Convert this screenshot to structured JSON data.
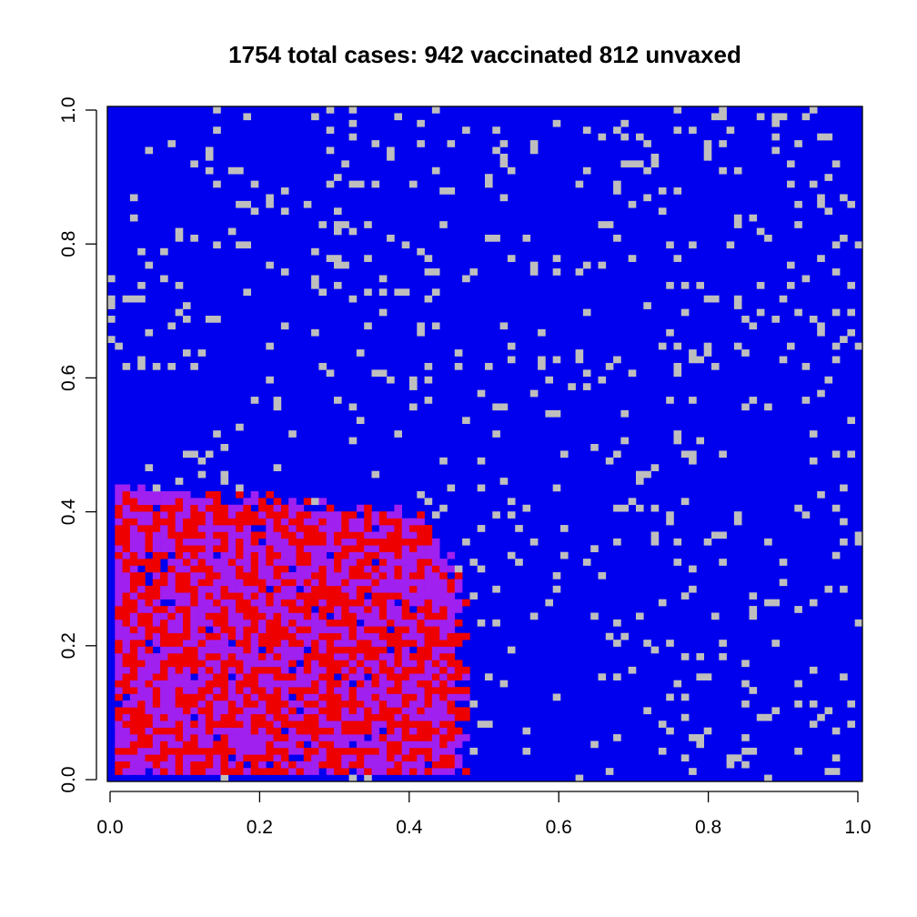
{
  "chart_data": {
    "type": "heatmap",
    "title": "1754 total cases: 942 vaccinated 812 unvaxed",
    "xlabel": "",
    "ylabel": "",
    "xlim": [
      0,
      1
    ],
    "ylim": [
      0,
      1
    ],
    "x_ticks": [
      "0.0",
      "0.2",
      "0.4",
      "0.6",
      "0.8",
      "1.0"
    ],
    "y_ticks": [
      "0.0",
      "0.2",
      "0.4",
      "0.6",
      "0.8",
      "1.0"
    ],
    "grid": false,
    "legend": "none",
    "grid_resolution": [
      100,
      100
    ],
    "states": [
      {
        "state": "vaccinated_susceptible",
        "color": "#0000ee"
      },
      {
        "state": "unvaccinated_susceptible",
        "color": "#bebebe"
      },
      {
        "state": "vaccinated_infected",
        "color": "#a020f0"
      },
      {
        "state": "unvaccinated_infected",
        "color": "#ee0000"
      }
    ],
    "infected_region": {
      "x_extent": [
        0,
        0.47
      ],
      "y_extent": [
        0,
        0.44
      ]
    },
    "totals": {
      "total_cases": 1754,
      "vaccinated": 942,
      "unvaxed": 812
    }
  }
}
